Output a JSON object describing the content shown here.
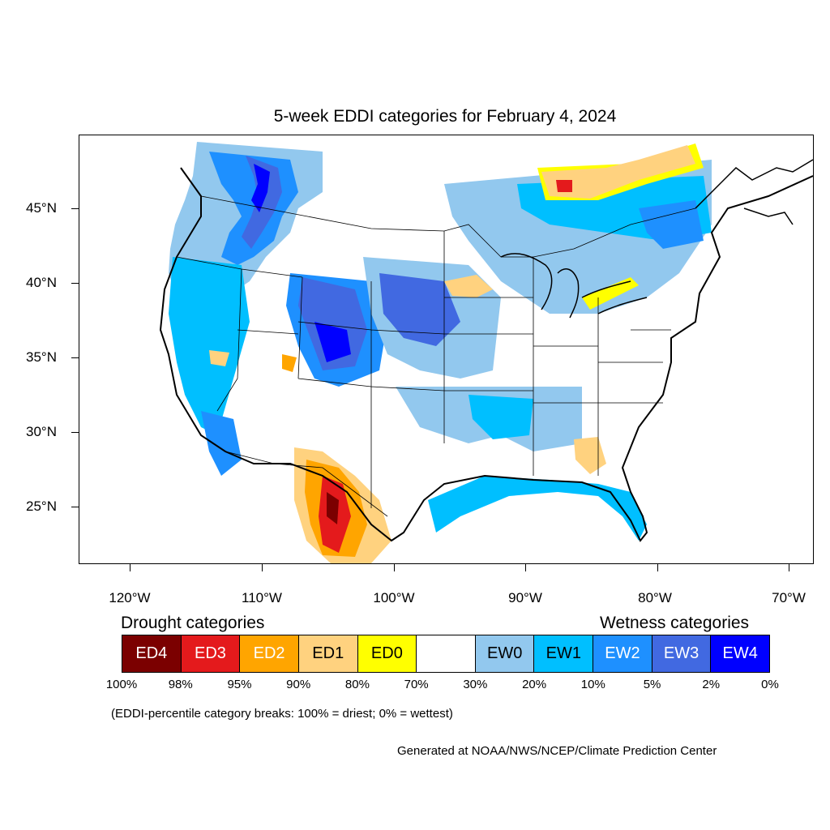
{
  "title": "5-week EDDI categories for February 4, 2024",
  "lat_labels": [
    "45°N",
    "40°N",
    "35°N",
    "30°N",
    "25°N"
  ],
  "lon_labels": [
    "120°W",
    "110°W",
    "100°W",
    "90°W",
    "80°W",
    "70°W"
  ],
  "legend": {
    "drought_heading": "Drought categories",
    "wetness_heading": "Wetness categories",
    "categories": [
      {
        "label": "ED4",
        "color": "#7b0000",
        "text_color": "#ffffff"
      },
      {
        "label": "ED3",
        "color": "#e41a1c",
        "text_color": "#ffffff"
      },
      {
        "label": "ED2",
        "color": "#ffa500",
        "text_color": "#ffffff"
      },
      {
        "label": "ED1",
        "color": "#ffd27f",
        "text_color": "#000000"
      },
      {
        "label": "ED0",
        "color": "#ffff00",
        "text_color": "#000000"
      },
      {
        "label": "",
        "color": "#ffffff",
        "text_color": "#000000"
      },
      {
        "label": "EW0",
        "color": "#92c8ee",
        "text_color": "#000000"
      },
      {
        "label": "EW1",
        "color": "#00bfff",
        "text_color": "#000000"
      },
      {
        "label": "EW2",
        "color": "#1e90ff",
        "text_color": "#ffffff"
      },
      {
        "label": "EW3",
        "color": "#4169e1",
        "text_color": "#ffffff"
      },
      {
        "label": "EW4",
        "color": "#0000ff",
        "text_color": "#ffffff"
      }
    ],
    "breaks": [
      "100%",
      "98%",
      "95%",
      "90%",
      "80%",
      "70%",
      "30%",
      "20%",
      "10%",
      "5%",
      "2%",
      "0%"
    ]
  },
  "footnote": "(EDDI-percentile category breaks: 100% = driest; 0% = wettest)",
  "credit": "Generated at NOAA/NWS/NCEP/Climate Prediction Center",
  "map_layers": [
    {
      "name": "north-rockies-wet",
      "category": "EW2"
    },
    {
      "name": "central-plains-wet",
      "category": "EW2"
    },
    {
      "name": "great-lakes-wet",
      "category": "EW1"
    },
    {
      "name": "west-coast-wet",
      "category": "EW1"
    },
    {
      "name": "gulf-coast-wet",
      "category": "EW1"
    },
    {
      "name": "mexico-drought",
      "category": "ED2"
    },
    {
      "name": "ontario-drought",
      "category": "ED1"
    },
    {
      "name": "wisconsin-drought",
      "category": "ED1"
    },
    {
      "name": "georgia-drought",
      "category": "ED1"
    }
  ]
}
